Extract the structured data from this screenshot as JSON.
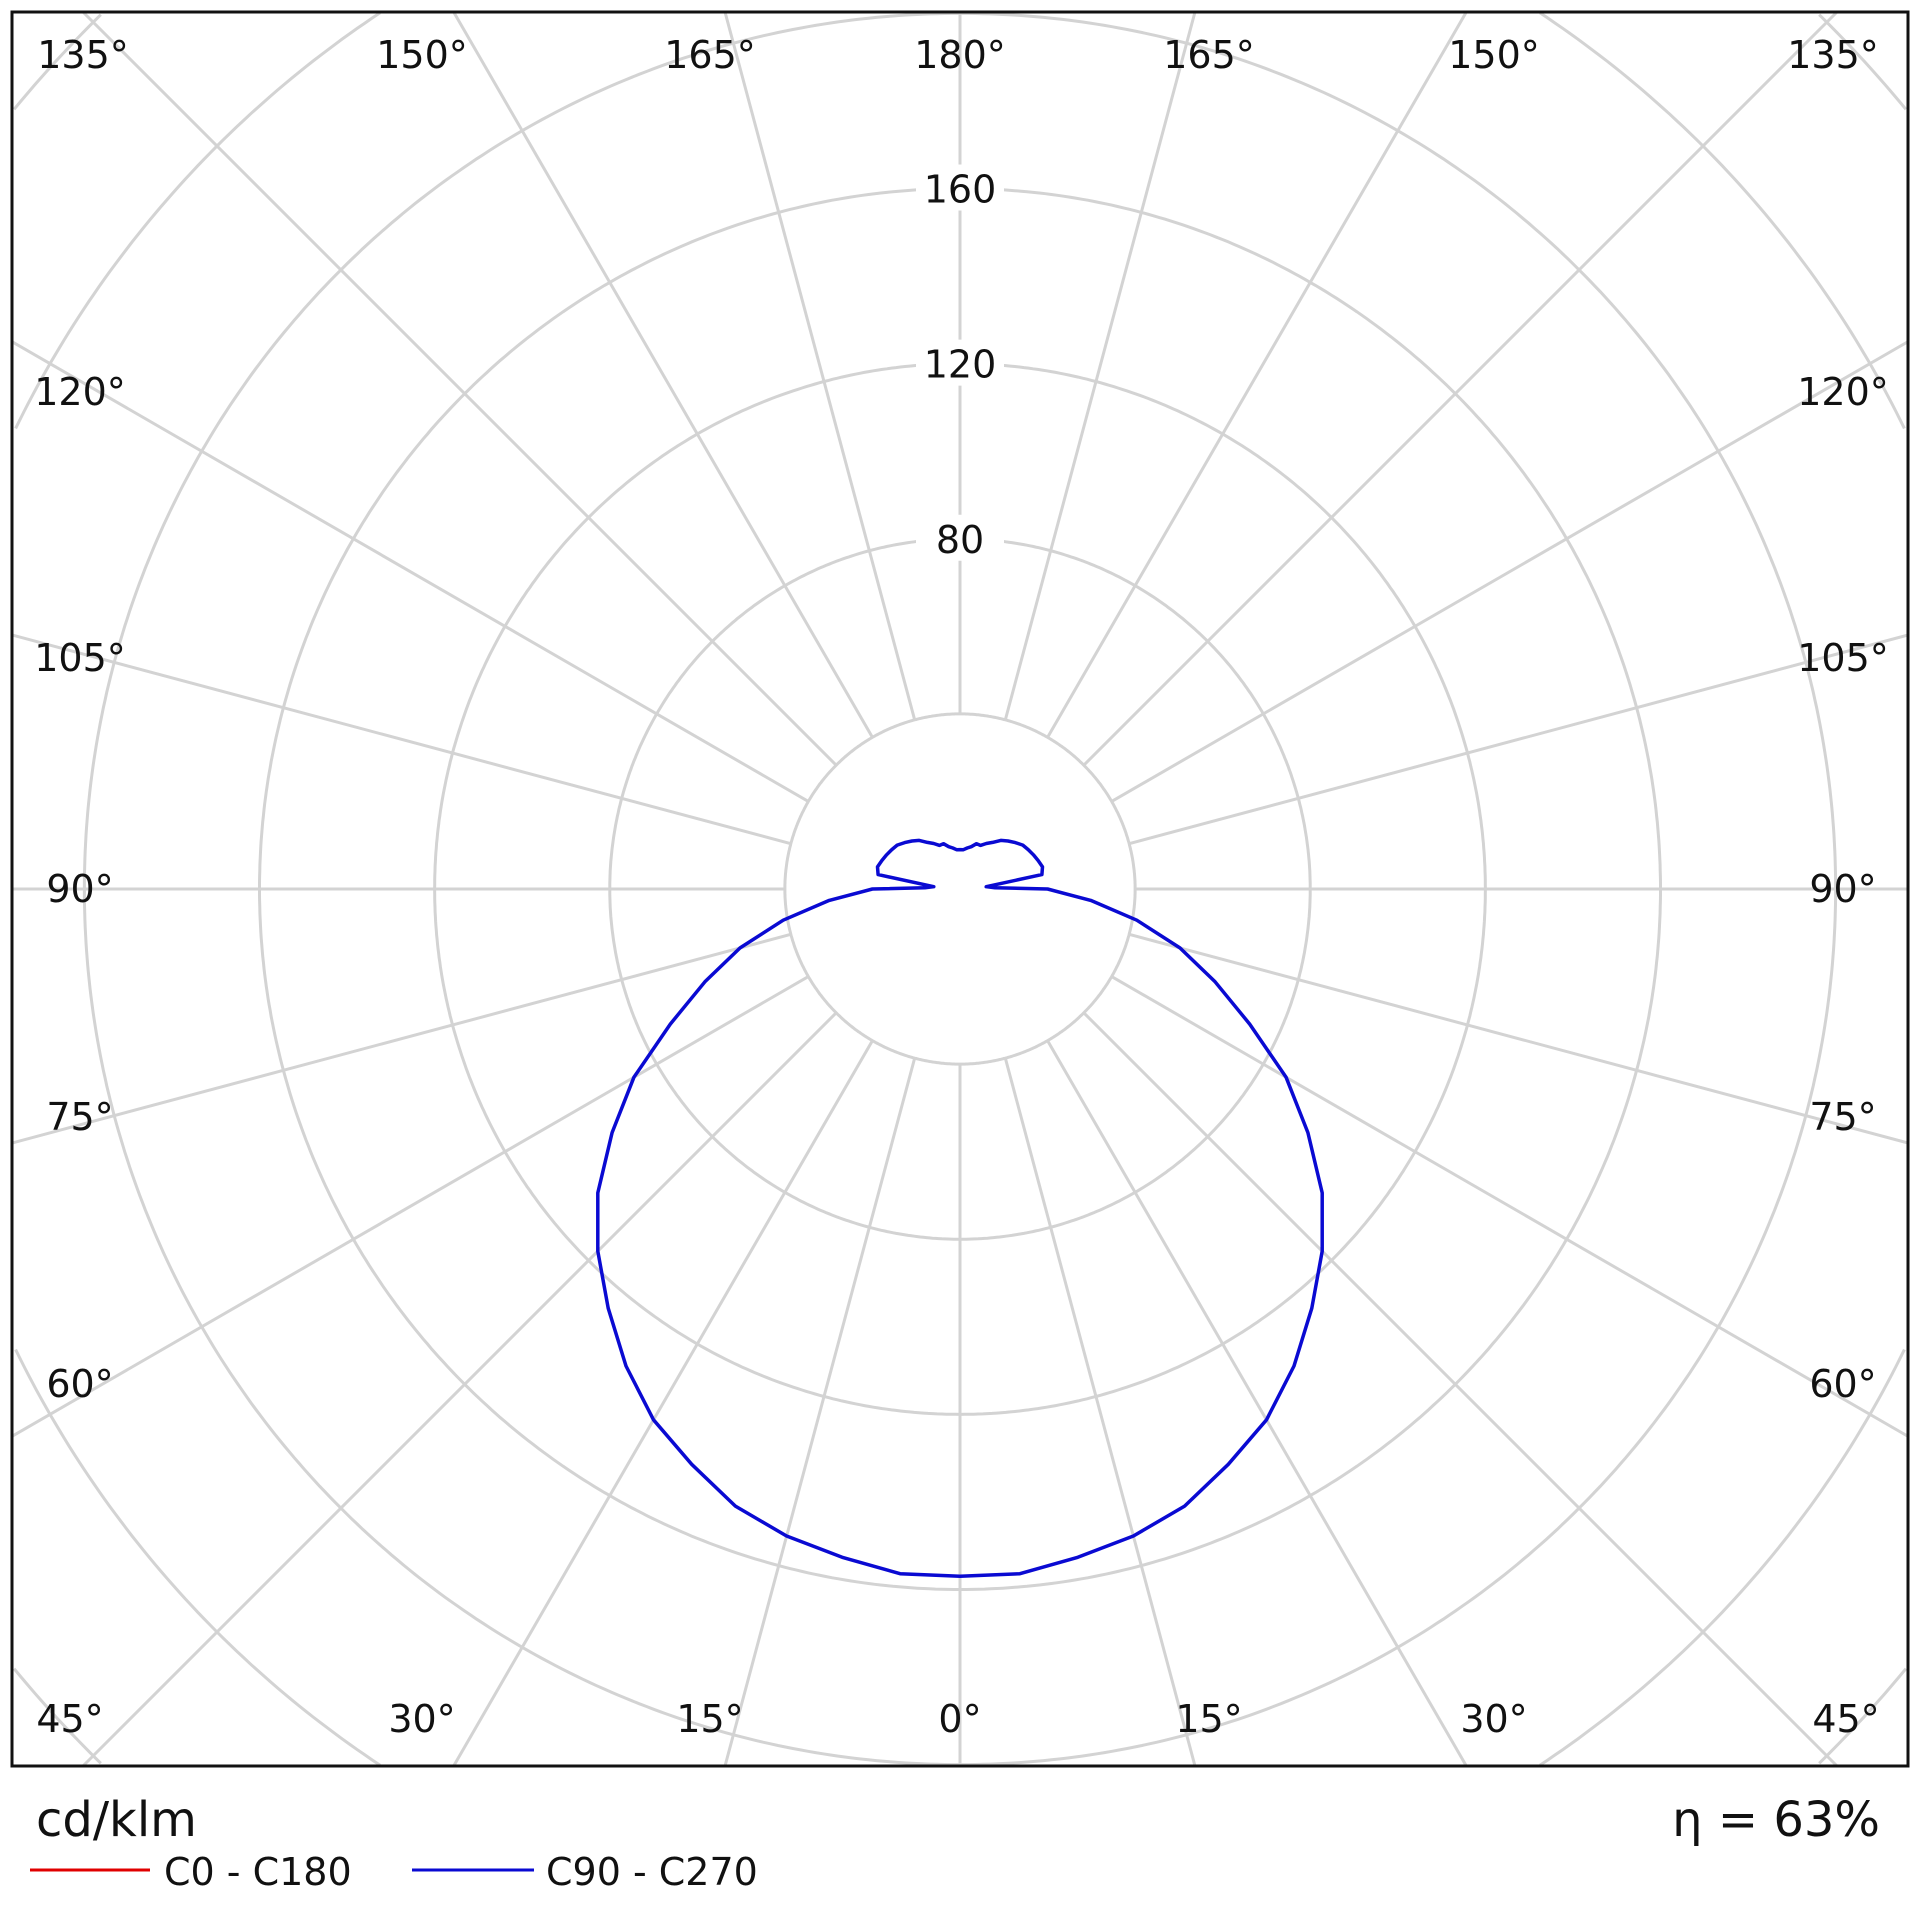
{
  "chart_data": {
    "type": "polar",
    "unit_label": "cd/klm",
    "efficiency_label": "η = 63%",
    "radial_ticks": [
      80,
      120,
      160
    ],
    "radial_grid_step": 40,
    "angle_grid_step_deg": 15,
    "angle_labels": {
      "top": [
        "135°",
        "150°",
        "165°",
        "180°",
        "165°",
        "150°",
        "135°"
      ],
      "left": [
        "120°",
        "105°",
        "90°",
        "75°",
        "60°"
      ],
      "right": [
        "120°",
        "105°",
        "90°",
        "75°",
        "60°"
      ],
      "bottom": [
        "45°",
        "30°",
        "15°",
        "0°",
        "15°",
        "30°",
        "45°"
      ]
    },
    "grid": true,
    "legend_position": "bottom-left",
    "series": [
      {
        "name": "C0 - C180",
        "color": "#e00000",
        "gamma": [],
        "values": []
      },
      {
        "name": "C90 - C270",
        "color": "#0a0ad2",
        "gamma": [
          0,
          5,
          10,
          15,
          20,
          25,
          30,
          35,
          40,
          45,
          50,
          55,
          60,
          65,
          70,
          75,
          80,
          85,
          90,
          92,
          95,
          100,
          105,
          110,
          115,
          120,
          125,
          130,
          135,
          140,
          145,
          150,
          155,
          160,
          165,
          170,
          175,
          180
        ],
        "values": [
          157,
          157,
          155,
          153,
          150,
          145,
          140,
          133,
          125,
          117,
          108,
          97,
          86,
          73,
          62,
          52,
          41,
          30,
          20,
          8,
          6,
          19,
          19.5,
          19,
          18.5,
          18,
          17.5,
          16.5,
          15.5,
          14.5,
          13,
          12,
          11,
          11,
          10,
          9.5,
          9,
          9
        ]
      }
    ]
  }
}
